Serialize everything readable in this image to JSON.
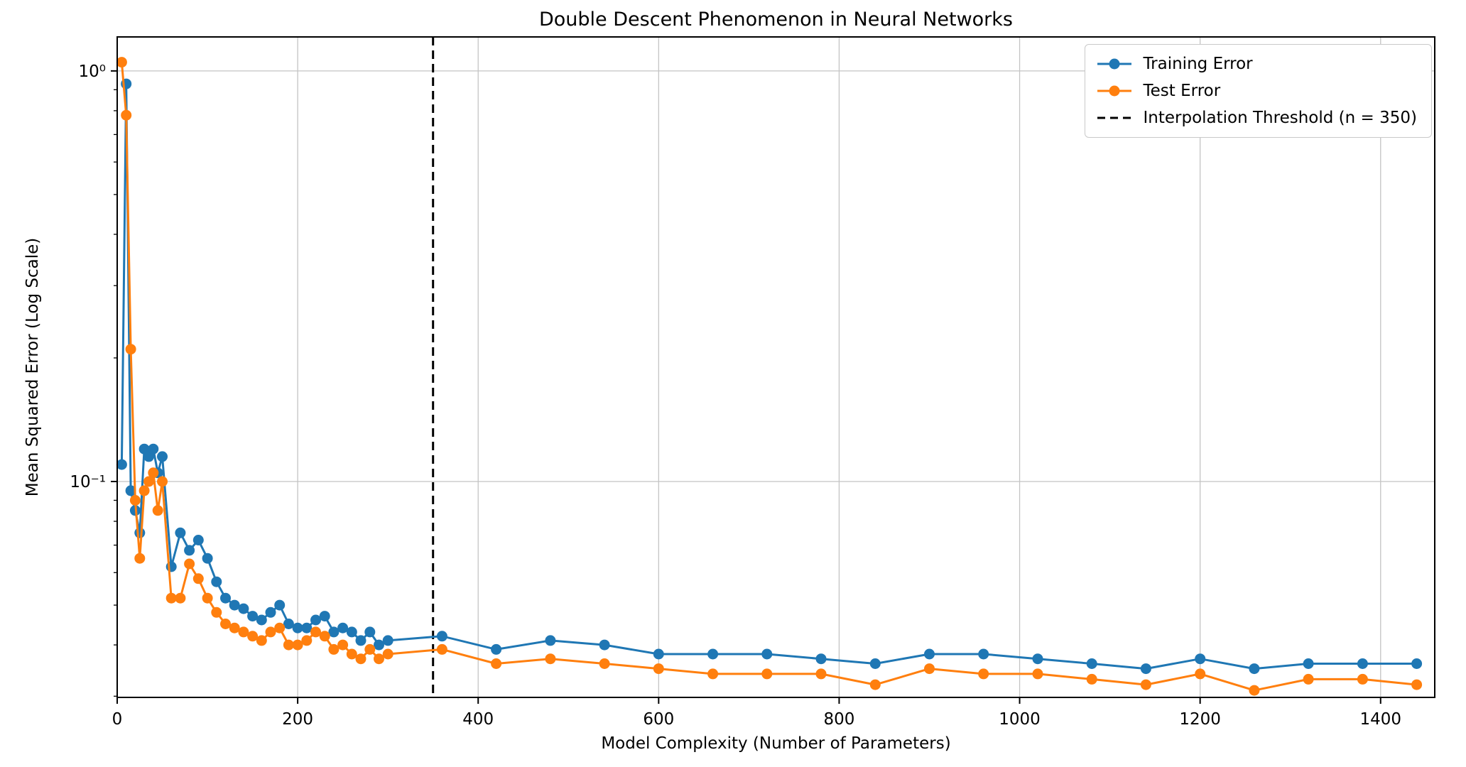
{
  "chart_data": {
    "type": "line",
    "title": "Double Descent Phenomenon in Neural Networks",
    "xlabel": "Model Complexity (Number of Parameters)",
    "ylabel": "Mean Squared Error (Log Scale)",
    "grid": true,
    "legend_position": "upper right",
    "x_ticks": [
      0,
      200,
      400,
      600,
      800,
      1000,
      1200,
      1400
    ],
    "y_ticks": [
      {
        "value": 1,
        "label": "10⁰"
      },
      {
        "value": 0.1,
        "label": "10⁻¹"
      }
    ],
    "xlim": [
      0,
      1460
    ],
    "ylim_log": [
      0.0298,
      1.21
    ],
    "threshold": {
      "x": 350,
      "label": "Interpolation Threshold (n = 350)",
      "color": "#000000",
      "style": "dashed"
    },
    "x": [
      5,
      10,
      15,
      20,
      25,
      30,
      35,
      40,
      45,
      50,
      60,
      70,
      80,
      90,
      100,
      110,
      120,
      130,
      140,
      150,
      160,
      170,
      180,
      190,
      200,
      210,
      220,
      230,
      240,
      250,
      260,
      270,
      280,
      290,
      300,
      360,
      420,
      480,
      540,
      600,
      660,
      720,
      780,
      840,
      900,
      960,
      1020,
      1080,
      1140,
      1200,
      1260,
      1320,
      1380,
      1440
    ],
    "series": [
      {
        "name": "Training Error",
        "color": "#1f77b4",
        "values": [
          0.11,
          0.93,
          0.095,
          0.085,
          0.075,
          0.12,
          0.115,
          0.12,
          0.105,
          0.115,
          0.062,
          0.075,
          0.068,
          0.072,
          0.065,
          0.057,
          0.052,
          0.05,
          0.049,
          0.047,
          0.046,
          0.048,
          0.05,
          0.045,
          0.044,
          0.044,
          0.046,
          0.047,
          0.043,
          0.044,
          0.043,
          0.041,
          0.043,
          0.04,
          0.041,
          0.042,
          0.039,
          0.041,
          0.04,
          0.038,
          0.038,
          0.038,
          0.037,
          0.036,
          0.038,
          0.038,
          0.037,
          0.036,
          0.035,
          0.037,
          0.035,
          0.036,
          0.036,
          0.036
        ]
      },
      {
        "name": "Test Error",
        "color": "#ff7f0e",
        "values": [
          1.05,
          0.78,
          0.21,
          0.09,
          0.065,
          0.095,
          0.1,
          0.105,
          0.085,
          0.1,
          0.052,
          0.052,
          0.063,
          0.058,
          0.052,
          0.048,
          0.045,
          0.044,
          0.043,
          0.042,
          0.041,
          0.043,
          0.044,
          0.04,
          0.04,
          0.041,
          0.043,
          0.042,
          0.039,
          0.04,
          0.038,
          0.037,
          0.039,
          0.037,
          0.038,
          0.039,
          0.036,
          0.037,
          0.036,
          0.035,
          0.034,
          0.034,
          0.034,
          0.032,
          0.035,
          0.034,
          0.034,
          0.033,
          0.032,
          0.034,
          0.031,
          0.033,
          0.033,
          0.032
        ]
      }
    ]
  },
  "style": {
    "grid_color": "#c4c4c4",
    "spine_color": "#000000",
    "background": "#ffffff"
  }
}
